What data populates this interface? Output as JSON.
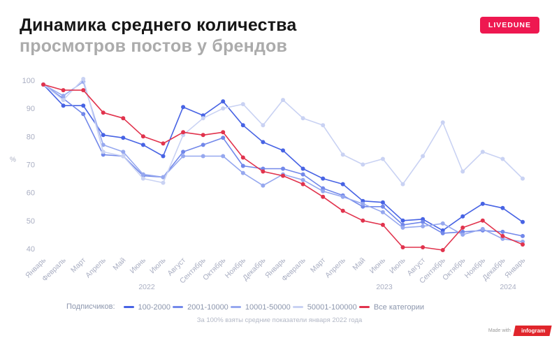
{
  "header": {
    "title_line1": "Динамика среднего количества",
    "title_line2": "просмотров постов у брендов",
    "brand_badge": "LIVEDUNE"
  },
  "legend": {
    "prefix": "Подписчиков:"
  },
  "footnote": "За 100% взяты средние показатели января 2022 года",
  "made_with": {
    "label": "Made with",
    "brand": "infogram"
  },
  "chart_data": {
    "type": "line",
    "title": "Динамика среднего количества просмотров постов у брендов",
    "ylabel": "%",
    "ylim": [
      40,
      100
    ],
    "yticks": [
      100,
      90,
      80,
      70,
      60,
      50,
      40
    ],
    "grid": false,
    "legend_position": "bottom",
    "categories": [
      "Январь",
      "Февраль",
      "Март",
      "Апрель",
      "Май",
      "Июнь",
      "Июль",
      "Август",
      "Сентябрь",
      "Октябрь",
      "Ноябрь",
      "Декабрь",
      "Январь",
      "Февраль",
      "Март",
      "Апрель",
      "Май",
      "Июнь",
      "Июль",
      "Август",
      "Сентябрь",
      "Октябрь",
      "Ноябрь",
      "Декабрь",
      "Январь"
    ],
    "year_labels": [
      "2022",
      "2023",
      "2024"
    ],
    "note": "За 100% взяты средние показатели января 2022 года",
    "series": [
      {
        "name": "100-2000",
        "color": "#4763e4",
        "values": [
          98.5,
          91,
          91,
          80.5,
          79.5,
          77,
          73,
          90.5,
          87.5,
          92.5,
          84,
          78,
          75,
          68.5,
          65,
          63,
          57,
          56.5,
          50,
          50.5,
          46.5,
          51.5,
          56,
          54.5,
          49.5
        ]
      },
      {
        "name": "2001-10000",
        "color": "#7288ea",
        "values": [
          98.5,
          93.5,
          88,
          73.5,
          73,
          66,
          65.5,
          74.5,
          77,
          79.5,
          69.5,
          68.5,
          68.5,
          66.5,
          61.5,
          59,
          55,
          55,
          48.5,
          49.5,
          45.5,
          46,
          46.5,
          46,
          44.5
        ]
      },
      {
        "name": "10001-50000",
        "color": "#96a8ef",
        "values": [
          98.5,
          94.5,
          99.5,
          77,
          74.5,
          66.5,
          65.5,
          73,
          73,
          73,
          67,
          62.5,
          66.5,
          64.5,
          60.5,
          58.5,
          56,
          53,
          47.5,
          48,
          49,
          45,
          47,
          43.5,
          42.5
        ]
      },
      {
        "name": "50001-100000",
        "color": "#c9d2f3",
        "values": [
          98.5,
          93,
          100.5,
          74.5,
          73,
          65,
          63.5,
          80.5,
          86.5,
          90,
          91.5,
          84,
          93,
          86.5,
          84,
          73.5,
          70,
          72,
          63,
          73,
          85,
          67.5,
          74.5,
          72,
          65
        ]
      },
      {
        "name": "Все категории",
        "color": "#e1334d",
        "values": [
          98.5,
          96.5,
          96.5,
          88.5,
          86.5,
          80,
          77.5,
          81.5,
          80.5,
          81.5,
          72.5,
          67.5,
          66,
          63,
          58.5,
          53.5,
          50,
          48.5,
          40.5,
          40.5,
          39.5,
          47.5,
          50,
          44.5,
          41.5
        ]
      }
    ]
  }
}
